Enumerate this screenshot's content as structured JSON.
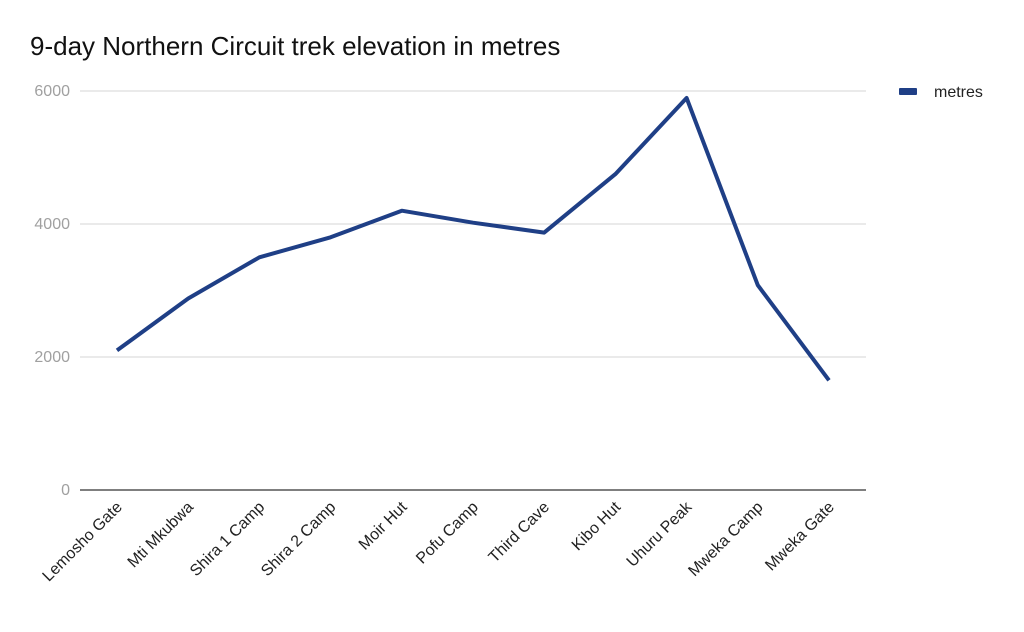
{
  "chart_data": {
    "type": "line",
    "title": "9-day Northern Circuit trek elevation in metres",
    "xlabel": "",
    "ylabel": "",
    "categories": [
      "Lemosho Gate",
      "Mti Mkubwa",
      "Shira 1 Camp",
      "Shira 2 Camp",
      "Moir Hut",
      "Pofu Camp",
      "Third Cave",
      "Kibo Hut",
      "Uhuru Peak",
      "Mweka Camp",
      "Mweka Gate"
    ],
    "series": [
      {
        "name": "metres",
        "values": [
          2100,
          2880,
          3500,
          3800,
          4200,
          4020,
          3870,
          4750,
          5895,
          3080,
          1650
        ],
        "color": "#1f3f86"
      }
    ],
    "ylim": [
      0,
      6000
    ],
    "yticks": [
      "0",
      "2000",
      "4000",
      "6000"
    ],
    "grid": true,
    "legend": "top-right"
  }
}
